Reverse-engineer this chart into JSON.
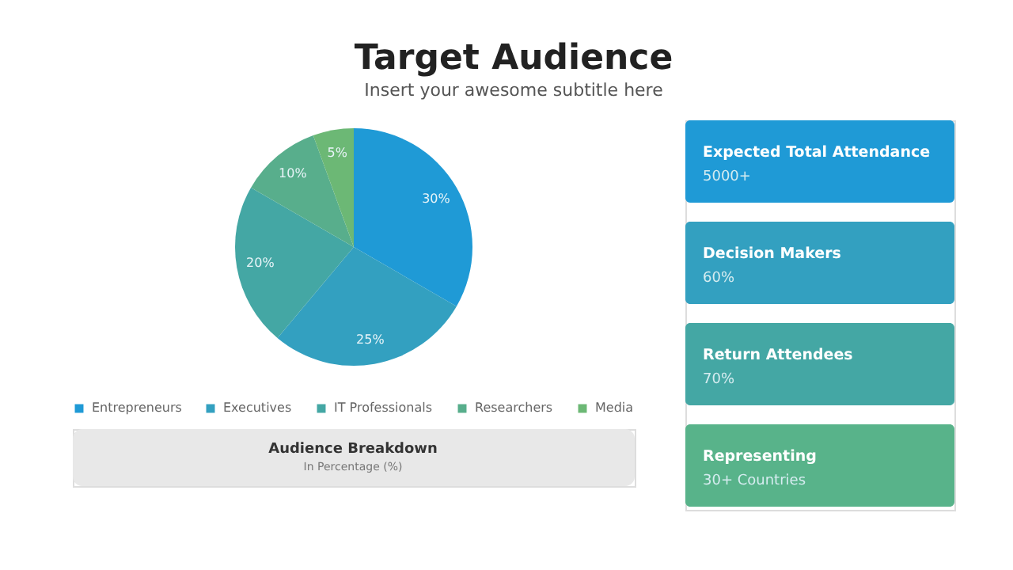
{
  "chart_data": [
    {
      "type": "pie",
      "title": "Target Audience",
      "subtitle": "Insert your awesome subtitle here",
      "categories": [
        "Entrepreneurs",
        "Executives",
        "IT Professionals",
        "Researchers",
        "Media"
      ],
      "values": [
        30,
        25,
        20,
        10,
        5
      ],
      "value_labels": [
        "30%",
        "25%",
        "20%",
        "10%",
        "5%"
      ],
      "colors": [
        "#1f9ad6",
        "#33a0c0",
        "#44a7a4",
        "#58ae8c",
        "#6cb875"
      ],
      "legend": "bottom",
      "annotations": [
        "Audience Breakdown",
        "In Percentage (%)"
      ]
    },
    {
      "type": "other",
      "annotations": [
        "Expected Total Attendance",
        "5000+",
        "Decision Makers",
        "60%",
        "Return Attendees",
        "70%",
        "Representing",
        "30+ Countries"
      ],
      "colors": [
        "#1f9ad6",
        "#33a0c0",
        "#44a7a4",
        "#58b38a"
      ]
    }
  ]
}
